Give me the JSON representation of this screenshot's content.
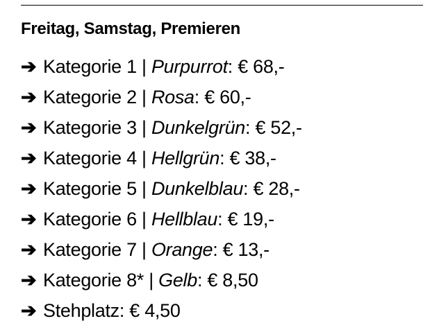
{
  "heading": "Freitag, Samstag, Premieren",
  "arrow_icon": "right-arrow-icon",
  "items": [
    {
      "label": "Kategorie 1",
      "color": "Purpurrot",
      "price": "€ 68,-"
    },
    {
      "label": "Kategorie 2",
      "color": "Rosa",
      "price": "€ 60,-"
    },
    {
      "label": "Kategorie 3",
      "color": "Dunkelgrün",
      "price": "€ 52,-"
    },
    {
      "label": "Kategorie 4",
      "color": "Hellgrün",
      "price": "€ 38,-"
    },
    {
      "label": "Kategorie 5",
      "color": "Dunkelblau",
      "price": "€ 28,-"
    },
    {
      "label": "Kategorie 6",
      "color": "Hellblau",
      "price": "€ 19,-"
    },
    {
      "label": "Kategorie 7",
      "color": "Orange",
      "price": "€ 13,-"
    },
    {
      "label": "Kategorie 8*",
      "color": "Gelb",
      "price": "€ 8,50"
    },
    {
      "label": "Stehplatz",
      "color": "",
      "price": "€ 4,50"
    }
  ]
}
